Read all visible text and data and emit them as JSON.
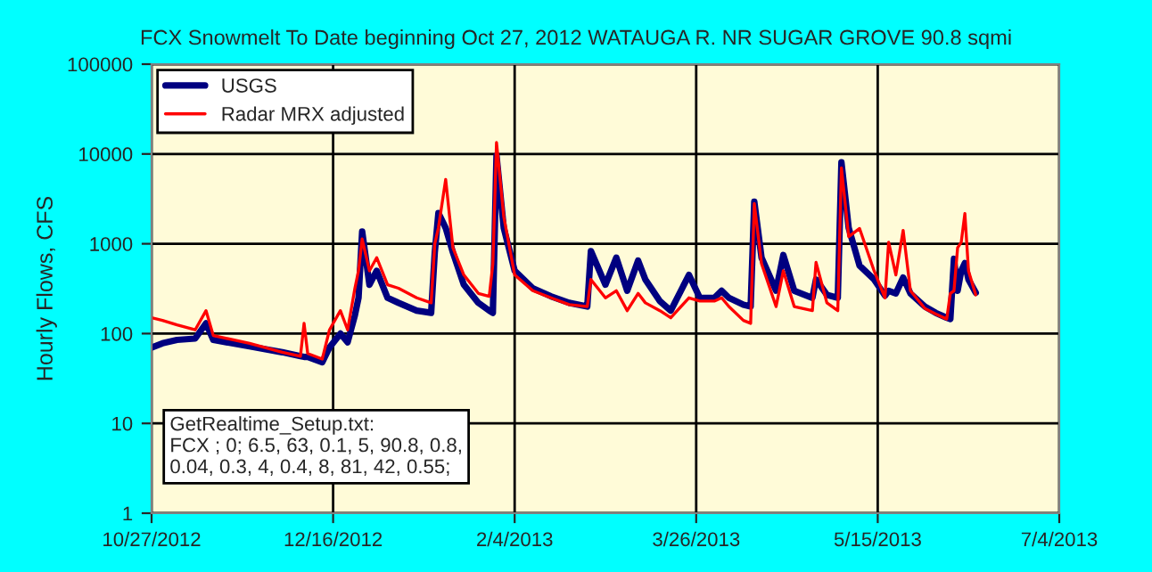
{
  "chart_data": {
    "type": "line",
    "title": "FCX Snowmelt To Date beginning Oct 27, 2012 WATAUGA R. NR SUGAR GROVE 90.8 sqmi",
    "ylabel": "Hourly Flows, CFS",
    "x": [
      "2012-10-27",
      "2012-10-30",
      "2012-11-03",
      "2012-11-08",
      "2012-11-11",
      "2012-11-13",
      "2012-11-23",
      "2012-12-02",
      "2012-12-07",
      "2012-12-08",
      "2012-12-09",
      "2012-12-13",
      "2012-12-15",
      "2012-12-18",
      "2012-12-20",
      "2012-12-22",
      "2012-12-23",
      "2012-12-24",
      "2012-12-26",
      "2012-12-28",
      "2012-12-31",
      "2013-01-03",
      "2013-01-08",
      "2013-01-12",
      "2013-01-13",
      "2013-01-14",
      "2013-01-16",
      "2013-01-18",
      "2013-01-21",
      "2013-01-25",
      "2013-01-28",
      "2013-01-29",
      "2013-01-30",
      "2013-02-01",
      "2013-02-04",
      "2013-02-09",
      "2013-02-14",
      "2013-02-19",
      "2013-02-24",
      "2013-02-25",
      "2013-03-01",
      "2013-03-04",
      "2013-03-07",
      "2013-03-10",
      "2013-03-12",
      "2013-03-16",
      "2013-03-19",
      "2013-03-24",
      "2013-03-27",
      "2013-03-31",
      "2013-04-02",
      "2013-04-04",
      "2013-04-08",
      "2013-04-10",
      "2013-04-11",
      "2013-04-13",
      "2013-04-17",
      "2013-04-19",
      "2013-04-22",
      "2013-04-27",
      "2013-04-28",
      "2013-05-01",
      "2013-05-04",
      "2013-05-05",
      "2013-05-07",
      "2013-05-10",
      "2013-05-14",
      "2013-05-17",
      "2013-05-18",
      "2013-05-20",
      "2013-05-22",
      "2013-05-24",
      "2013-05-28",
      "2013-05-31",
      "2013-06-03",
      "2013-06-04",
      "2013-06-05",
      "2013-06-06",
      "2013-06-07",
      "2013-06-08",
      "2013-06-09",
      "2013-06-11"
    ],
    "series": [
      {
        "name": "USGS",
        "color": "#000080",
        "values": [
          70,
          78,
          85,
          88,
          130,
          85,
          72,
          62,
          56,
          55,
          55,
          48,
          70,
          100,
          80,
          160,
          250,
          1370,
          350,
          500,
          250,
          220,
          180,
          170,
          800,
          2200,
          1500,
          800,
          350,
          220,
          180,
          170,
          9600,
          1500,
          500,
          320,
          260,
          220,
          200,
          830,
          350,
          700,
          300,
          650,
          400,
          230,
          180,
          450,
          250,
          250,
          300,
          250,
          210,
          200,
          2950,
          700,
          300,
          750,
          300,
          250,
          400,
          270,
          250,
          8100,
          1500,
          570,
          400,
          265,
          300,
          280,
          420,
          280,
          200,
          170,
          150,
          145,
          680,
          300,
          500,
          610,
          400,
          285
        ]
      },
      {
        "name": "Radar MRX adjusted",
        "color": "#ff0000",
        "values": [
          150,
          140,
          125,
          110,
          180,
          95,
          78,
          62,
          56,
          130,
          60,
          52,
          110,
          180,
          110,
          320,
          500,
          1130,
          500,
          700,
          350,
          320,
          250,
          220,
          1000,
          1500,
          5200,
          900,
          450,
          280,
          260,
          600,
          13400,
          2000,
          450,
          300,
          250,
          210,
          200,
          400,
          250,
          300,
          180,
          280,
          220,
          180,
          150,
          250,
          230,
          230,
          250,
          200,
          140,
          130,
          2800,
          600,
          200,
          500,
          200,
          180,
          620,
          220,
          180,
          7000,
          1200,
          1480,
          500,
          250,
          1040,
          450,
          1410,
          300,
          190,
          165,
          145,
          280,
          300,
          900,
          1040,
          2170,
          500,
          270
        ]
      }
    ],
    "xlim": [
      "2012-10-27",
      "2013-07-04"
    ],
    "xticks": [
      {
        "value": "2012-10-27",
        "label": "10/27/2012"
      },
      {
        "value": "2012-12-16",
        "label": "12/16/2012"
      },
      {
        "value": "2013-02-04",
        "label": "2/4/2013"
      },
      {
        "value": "2013-03-26",
        "label": "3/26/2013"
      },
      {
        "value": "2013-05-15",
        "label": "5/15/2013"
      },
      {
        "value": "2013-07-04",
        "label": "7/4/2013"
      }
    ],
    "log": true,
    "ylim": [
      1,
      100000
    ],
    "yticks": [
      1,
      10,
      100,
      1000,
      10000,
      100000
    ],
    "grid": true,
    "legend": "top left",
    "annotations": [
      "GetRealtime_Setup.txt:\nFCX ; 0; 6.5, 63, 0.1, 5, 90.8, 0.8,\n0.04, 0.3, 4, 0.4, 8, 81, 42, 0.55;"
    ]
  }
}
